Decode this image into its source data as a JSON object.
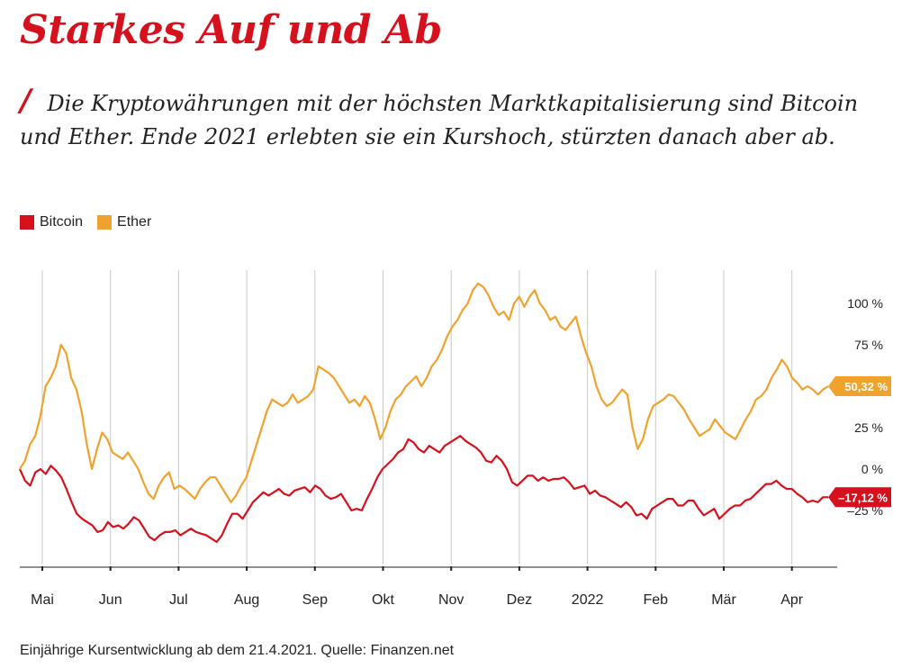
{
  "header": {
    "title": "Starkes Auf und Ab",
    "slash": "/",
    "subtitle": "Die Kryptowährungen mit der höchsten Marktkapitalisierung sind Bitcoin und Ether.  Ende 2021 erlebten sie ein Kurshoch, stürzten danach aber ab."
  },
  "footer": {
    "source": "Einjährige Kursentwicklung ab dem 21.4.2021. Quelle: Finanzen.net"
  },
  "colors": {
    "bitcoin": "#d6111e",
    "ether": "#f0a22e",
    "grid": "#c8c8c8"
  },
  "chart_data": {
    "type": "line",
    "x_tick_labels": [
      "Mai",
      "Jun",
      "Jul",
      "Aug",
      "Sep",
      "Okt",
      "Nov",
      "Dez",
      "2022",
      "Feb",
      "Mär",
      "Apr"
    ],
    "y_tick_labels": [
      "100 %",
      "75 %",
      "50 %",
      "25 %",
      "0 %",
      "–25 %"
    ],
    "y_ticks": [
      100,
      75,
      50,
      25,
      0,
      -25
    ],
    "ylim": [
      -60,
      115
    ],
    "legend": [
      "Bitcoin",
      "Ether"
    ],
    "end_labels": {
      "bitcoin": "–17,12 %",
      "ether": "50,32 %"
    },
    "series": [
      {
        "name": "Bitcoin",
        "values": [
          0,
          -7,
          -10,
          -2,
          0,
          -3,
          2,
          -1,
          -5,
          -12,
          -20,
          -27,
          -30,
          -32,
          -34,
          -38,
          -37,
          -32,
          -35,
          -34,
          -36,
          -33,
          -29,
          -31,
          -36,
          -41,
          -43,
          -40,
          -38,
          -38,
          -37,
          -40,
          -38,
          -36,
          -38,
          -39,
          -40,
          -42,
          -44,
          -40,
          -33,
          -27,
          -27,
          -30,
          -25,
          -20,
          -17,
          -14,
          -16,
          -14,
          -12,
          -15,
          -16,
          -13,
          -12,
          -11,
          -14,
          -10,
          -12,
          -16,
          -18,
          -17,
          -15,
          -20,
          -25,
          -24,
          -25,
          -18,
          -12,
          -5,
          0,
          3,
          6,
          10,
          12,
          18,
          16,
          12,
          10,
          14,
          12,
          10,
          14,
          16,
          18,
          20,
          17,
          15,
          13,
          10,
          5,
          4,
          8,
          5,
          0,
          -8,
          -10,
          -7,
          -4,
          -4,
          -7,
          -5,
          -7,
          -6,
          -6,
          -5,
          -8,
          -12,
          -11,
          -10,
          -15,
          -13,
          -16,
          -17,
          -19,
          -21,
          -23,
          -20,
          -23,
          -28,
          -27,
          -30,
          -24,
          -22,
          -20,
          -18,
          -18,
          -22,
          -22,
          -19,
          -19,
          -24,
          -28,
          -26,
          -24,
          -30,
          -27,
          -24,
          -22,
          -22,
          -19,
          -18,
          -15,
          -12,
          -9,
          -9,
          -7,
          -10,
          -12,
          -12,
          -15,
          -17,
          -20,
          -19,
          -20,
          -17,
          -17
        ]
      },
      {
        "name": "Ether",
        "values": [
          0,
          5,
          15,
          20,
          32,
          50,
          55,
          62,
          75,
          70,
          55,
          48,
          35,
          15,
          0,
          12,
          22,
          18,
          10,
          8,
          6,
          10,
          5,
          0,
          -8,
          -15,
          -18,
          -10,
          -5,
          -2,
          -12,
          -10,
          -12,
          -15,
          -18,
          -12,
          -8,
          -5,
          -5,
          -10,
          -15,
          -20,
          -16,
          -10,
          -5,
          5,
          15,
          25,
          35,
          42,
          40,
          38,
          40,
          45,
          40,
          42,
          44,
          48,
          62,
          60,
          58,
          55,
          50,
          45,
          40,
          42,
          38,
          44,
          40,
          30,
          18,
          25,
          35,
          42,
          45,
          50,
          53,
          56,
          50,
          55,
          62,
          66,
          72,
          80,
          86,
          90,
          96,
          100,
          108,
          112,
          110,
          105,
          98,
          93,
          95,
          90,
          100,
          104,
          98,
          104,
          108,
          100,
          96,
          90,
          92,
          86,
          84,
          88,
          92,
          80,
          70,
          62,
          50,
          42,
          38,
          40,
          44,
          48,
          45,
          25,
          12,
          18,
          30,
          38,
          40,
          42,
          45,
          44,
          40,
          36,
          30,
          25,
          20,
          22,
          24,
          30,
          26,
          22,
          20,
          18,
          24,
          30,
          35,
          42,
          44,
          48,
          55,
          60,
          66,
          62,
          55,
          52,
          48,
          50,
          48,
          45,
          48,
          50
        ]
      }
    ]
  }
}
